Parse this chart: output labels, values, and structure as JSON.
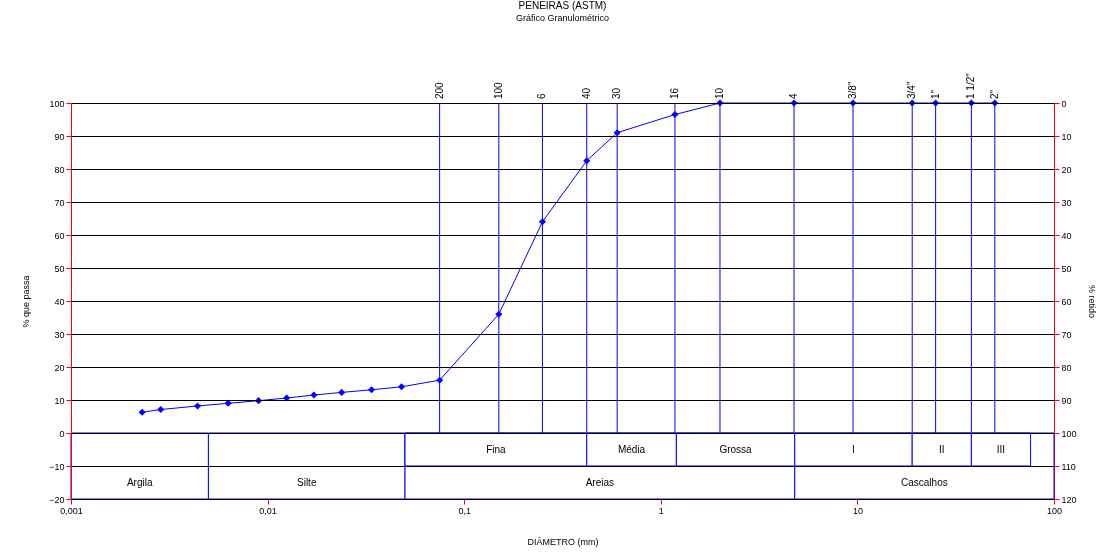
{
  "chart_data": {
    "type": "line",
    "title": "PENEIRAS (ASTM)",
    "subtitle": "Gráfico Granulométrico",
    "xlabel": "DIÂMETRO (mm)",
    "ylabel": "% que passa",
    "y2label": "% retido",
    "log": "x",
    "grid": "y",
    "marker": "diamond",
    "line_style": "solid",
    "xlim": [
      0.001,
      100
    ],
    "xticks": [
      {
        "value": 0.001,
        "label": "0,001"
      },
      {
        "value": 0.01,
        "label": "0,01"
      },
      {
        "value": 0.1,
        "label": "0,1"
      },
      1,
      10,
      100
    ],
    "ylim": [
      -20,
      100
    ],
    "yticks": [
      -20,
      -10,
      0,
      10,
      20,
      30,
      40,
      50,
      60,
      70,
      80,
      90,
      100
    ],
    "y2lim": [
      120,
      0
    ],
    "y2ticks": [
      0,
      10,
      20,
      30,
      40,
      50,
      60,
      70,
      80,
      90,
      100,
      110,
      120
    ],
    "x": [
      0.0023,
      0.00286,
      0.0044,
      0.0063,
      0.009,
      0.0125,
      0.0172,
      0.0238,
      0.0338,
      0.048,
      0.075,
      0.15,
      0.25,
      0.42,
      0.6,
      1.18,
      2.0,
      4.76,
      9.5,
      19,
      25,
      38,
      50
    ],
    "series": [
      {
        "color": "#0000ff",
        "values": [
          6.3,
          7.1,
          8.2,
          9,
          9.8,
          10.6,
          11.5,
          12.3,
          13.1,
          14,
          16,
          36,
          64,
          82.5,
          91,
          96.5,
          100,
          100,
          100,
          100,
          100,
          100,
          100
        ]
      }
    ],
    "ref_lines": [
      {
        "axis": "x",
        "value": 0.075,
        "color": "#0000ff"
      },
      {
        "axis": "x",
        "value": 0.15,
        "color": "#0000ff"
      },
      {
        "axis": "x",
        "value": 0.25,
        "color": "#0000ff"
      },
      {
        "axis": "x",
        "value": 0.42,
        "color": "#0000ff"
      },
      {
        "axis": "x",
        "value": 0.6,
        "color": "#0000ff"
      },
      {
        "axis": "x",
        "value": 1.18,
        "color": "#0000ff"
      },
      {
        "axis": "x",
        "value": 2.0,
        "color": "#0000ff"
      },
      {
        "axis": "x",
        "value": 4.76,
        "color": "#0000ff"
      },
      {
        "axis": "x",
        "value": 9.5,
        "color": "#0000ff"
      },
      {
        "axis": "x",
        "value": 19,
        "color": "#0000ff"
      },
      {
        "axis": "x",
        "value": 25,
        "color": "#0000ff"
      },
      {
        "axis": "x",
        "value": 38,
        "color": "#0000ff"
      },
      {
        "axis": "x",
        "value": 50,
        "color": "#0000ff"
      }
    ],
    "annotations": [
      {
        "text": "200",
        "x": 0.075,
        "y": 100
      },
      {
        "text": "100",
        "x": 0.15,
        "y": 100
      },
      {
        "text": "6",
        "x": 0.25,
        "y": 100
      },
      {
        "text": "40",
        "x": 0.42,
        "y": 100
      },
      {
        "text": "30",
        "x": 0.6,
        "y": 100
      },
      {
        "text": "16",
        "x": 1.18,
        "y": 100
      },
      {
        "text": "10",
        "x": 2.0,
        "y": 100
      },
      {
        "text": "4",
        "x": 4.76,
        "y": 100
      },
      {
        "text": "3/8\"",
        "x": 9.5,
        "y": 100
      },
      {
        "text": "3/4\"",
        "x": 19,
        "y": 100
      },
      {
        "text": "1\"",
        "x": 25,
        "y": 100
      },
      {
        "text": "1 1/2\"",
        "x": 38,
        "y": 100
      },
      {
        "text": "2\"",
        "x": 50,
        "y": 100
      }
    ],
    "bands": [
      {
        "axis": "x",
        "from": 0.001,
        "to": 0.005,
        "label": "Argila",
        "color": "#ffffff"
      },
      {
        "axis": "x",
        "from": 0.005,
        "to": 0.05,
        "label": "Silte",
        "color": "#ffffff"
      },
      {
        "axis": "x",
        "from": 0.05,
        "to": 4.8,
        "label": "Areias",
        "color": "#ffffff"
      },
      {
        "axis": "x",
        "from": 4.8,
        "to": 100,
        "label": "Cascalhos",
        "color": "#ffffff"
      },
      {
        "axis": "x",
        "from": 0.05,
        "to": 0.42,
        "label": "Fina",
        "color": "#ffffff"
      },
      {
        "axis": "x",
        "from": 0.42,
        "to": 1.2,
        "label": "Média",
        "color": "#ffffff"
      },
      {
        "axis": "x",
        "from": 1.2,
        "to": 4.8,
        "label": "Grossa",
        "color": "#ffffff"
      },
      {
        "axis": "x",
        "from": 4.8,
        "to": 19,
        "label": "I",
        "color": "#ffffff"
      },
      {
        "axis": "x",
        "from": 19,
        "to": 38,
        "label": "II",
        "color": "#ffffff"
      },
      {
        "axis": "x",
        "from": 38,
        "to": 76,
        "label": "III",
        "color": "#ffffff"
      }
    ]
  }
}
